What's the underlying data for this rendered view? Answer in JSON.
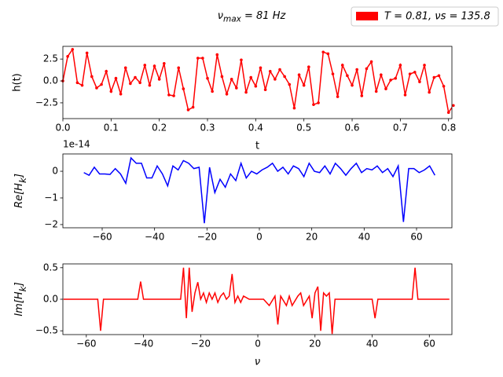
{
  "chart_data": [
    {
      "type": "line",
      "marker": true,
      "title": {
        "base": "ν",
        "sub": "max",
        "rest": " = 81 Hz"
      },
      "legend": "upper right",
      "xlabel": "t",
      "ylabel": "h(t)",
      "x": [
        0,
        0.01,
        0.02,
        0.03,
        0.04,
        0.05,
        0.06,
        0.07,
        0.08,
        0.09,
        0.1,
        0.11,
        0.12,
        0.13,
        0.14,
        0.15,
        0.16,
        0.17,
        0.18,
        0.19,
        0.2,
        0.21,
        0.22,
        0.23,
        0.24,
        0.25,
        0.26,
        0.27,
        0.28,
        0.29,
        0.3,
        0.31,
        0.32,
        0.33,
        0.34,
        0.35,
        0.36,
        0.37,
        0.38,
        0.39,
        0.4,
        0.41,
        0.42,
        0.43,
        0.44,
        0.45,
        0.46,
        0.47,
        0.48,
        0.49,
        0.5,
        0.51,
        0.52,
        0.53,
        0.54,
        0.55,
        0.56,
        0.57,
        0.58,
        0.59,
        0.6,
        0.61,
        0.62,
        0.63,
        0.64,
        0.65,
        0.66,
        0.67,
        0.68,
        0.69,
        0.7,
        0.71,
        0.72,
        0.73,
        0.74,
        0.75,
        0.76,
        0.77,
        0.78,
        0.79,
        0.8,
        0.81
      ],
      "series": [
        {
          "name": "T = 0.81, νs = 135.8",
          "color": "#ff0000",
          "values": [
            0,
            2.8,
            3.6,
            -0.2,
            -0.5,
            3.2,
            0.5,
            -0.8,
            -0.4,
            1.1,
            -1.2,
            0.3,
            -1.5,
            1.5,
            -0.3,
            0.4,
            -0.2,
            1.8,
            -0.5,
            1.7,
            0.2,
            2.0,
            -1.6,
            -1.7,
            1.5,
            -0.9,
            -3.3,
            -3.0,
            2.6,
            2.6,
            0.3,
            -1.2,
            3.0,
            0.5,
            -1.5,
            0.2,
            -0.8,
            2.4,
            -1.3,
            0.4,
            -0.6,
            1.5,
            -1.0,
            1.1,
            0.2,
            1.3,
            0.5,
            -0.4,
            -3.1,
            0.7,
            -0.5,
            1.6,
            -2.7,
            -2.5,
            3.3,
            3.1,
            0.8,
            -1.8,
            1.8,
            0.6,
            -0.5,
            1.3,
            -1.7,
            1.4,
            2.2,
            -1.2,
            0.7,
            -0.9,
            0.1,
            0.3,
            1.8,
            -1.6,
            0.8,
            1.0,
            -0.1,
            1.8,
            -1.3,
            0.4,
            0.6,
            -0.6,
            -3.6,
            -2.8
          ]
        }
      ],
      "xlim": [
        0,
        0.807
      ],
      "ylim": [
        -4.3,
        3.95
      ],
      "xticks": [
        {
          "value": 0,
          "label": "0.0"
        },
        0.1,
        0.2,
        0.3,
        0.4,
        0.5,
        0.6,
        0.7,
        0.8
      ],
      "yticks": [
        {
          "value": -2.5,
          "label": "−2.5"
        },
        {
          "value": 0,
          "label": "0.0"
        },
        2.5
      ]
    },
    {
      "type": "line",
      "offset_text": "1e-14",
      "ylabel": {
        "base": "Re[H",
        "sub": "k",
        "rest": "]"
      },
      "x": [
        -67,
        -65,
        -63,
        -61,
        -59,
        -57,
        -55,
        -53,
        -51,
        -49,
        -47,
        -45,
        -43,
        -41,
        -39,
        -37,
        -35,
        -33,
        -31,
        -29,
        -27,
        -25,
        -23,
        -21,
        -19,
        -17,
        -15,
        -13,
        -11,
        -9,
        -7,
        -5,
        -3,
        -1,
        1,
        3,
        5,
        7,
        9,
        11,
        13,
        15,
        17,
        19,
        21,
        23,
        25,
        27,
        29,
        31,
        33,
        35,
        37,
        39,
        41,
        43,
        45,
        47,
        49,
        51,
        53,
        55,
        57,
        59,
        61,
        63,
        65,
        67
      ],
      "series": [
        {
          "color": "#0000ff",
          "values": [
            -0.05,
            -0.15,
            0.15,
            -0.1,
            -0.1,
            -0.12,
            0.1,
            -0.1,
            -0.45,
            0.5,
            0.3,
            0.3,
            -0.25,
            -0.25,
            0.2,
            -0.1,
            -0.55,
            0.2,
            0.05,
            0.4,
            0.3,
            0.1,
            0.15,
            -1.95,
            0.15,
            -0.8,
            -0.3,
            -0.6,
            -0.1,
            -0.35,
            0.3,
            -0.25,
            0.0,
            -0.1,
            0.05,
            0.15,
            0.3,
            0.0,
            0.15,
            -0.1,
            0.2,
            0.1,
            -0.2,
            0.3,
            0.0,
            -0.05,
            0.2,
            -0.1,
            0.3,
            0.1,
            -0.15,
            0.1,
            0.3,
            -0.05,
            0.1,
            0.05,
            0.2,
            -0.05,
            0.1,
            -0.2,
            0.2,
            -1.9,
            0.1,
            0.1,
            -0.05,
            0.05,
            0.2,
            -0.15
          ]
        }
      ],
      "xlim": [
        -75,
        73.5
      ],
      "ylim": [
        -2.12,
        0.65
      ],
      "xticks": [
        {
          "value": -60,
          "label": "−60"
        },
        {
          "value": -40,
          "label": "−40"
        },
        {
          "value": -20,
          "label": "−20"
        },
        0,
        20,
        40,
        60
      ],
      "yticks": [
        {
          "value": -2,
          "label": "−2"
        },
        {
          "value": -1,
          "label": "−1"
        },
        0
      ]
    },
    {
      "type": "line",
      "xlabel": "ν",
      "ylabel": {
        "base": "Im[H",
        "sub": "k",
        "rest": "]"
      },
      "x": [
        -68,
        -56,
        -55,
        -54,
        -42,
        -41,
        -40,
        -27,
        -26,
        -25,
        -24,
        -23,
        -22,
        -21,
        -20,
        -19,
        -18,
        -17,
        -16,
        -15,
        -14,
        -13,
        -12,
        -11,
        -10,
        -9,
        -8,
        -7,
        -6,
        -5,
        -3,
        2,
        4,
        6,
        7,
        8,
        10,
        11,
        12,
        14,
        15,
        16,
        18,
        19,
        20,
        21,
        22,
        23,
        24,
        25,
        26,
        27,
        40,
        41,
        42,
        54,
        55,
        56,
        67
      ],
      "series": [
        {
          "color": "#ff0000",
          "values": [
            0,
            0,
            -0.5,
            0,
            0,
            0.28,
            0,
            0,
            0.5,
            -0.3,
            0.5,
            -0.2,
            0.1,
            0.27,
            0,
            0.1,
            -0.05,
            0.1,
            0,
            0.1,
            -0.05,
            0.05,
            0.1,
            0,
            0.05,
            0.4,
            -0.05,
            0.05,
            -0.05,
            0.05,
            0,
            0,
            -0.1,
            0.05,
            -0.4,
            0.05,
            -0.1,
            0.05,
            -0.1,
            0.05,
            0.1,
            -0.1,
            0.05,
            -0.3,
            0.1,
            0.2,
            -0.5,
            0.1,
            0.05,
            0.1,
            -0.55,
            0,
            0,
            -0.3,
            0,
            0,
            0.5,
            0,
            0
          ]
        }
      ],
      "xlim": [
        -68.2,
        67.9
      ],
      "ylim": [
        -0.56,
        0.56
      ],
      "xticks": [
        {
          "value": -60,
          "label": "−60"
        },
        {
          "value": -40,
          "label": "−40"
        },
        {
          "value": -20,
          "label": "−20"
        },
        0,
        20,
        40,
        60
      ],
      "yticks": [
        {
          "value": -0.5,
          "label": "−0.5"
        },
        {
          "value": 0,
          "label": "0.0"
        },
        0.5
      ]
    }
  ]
}
